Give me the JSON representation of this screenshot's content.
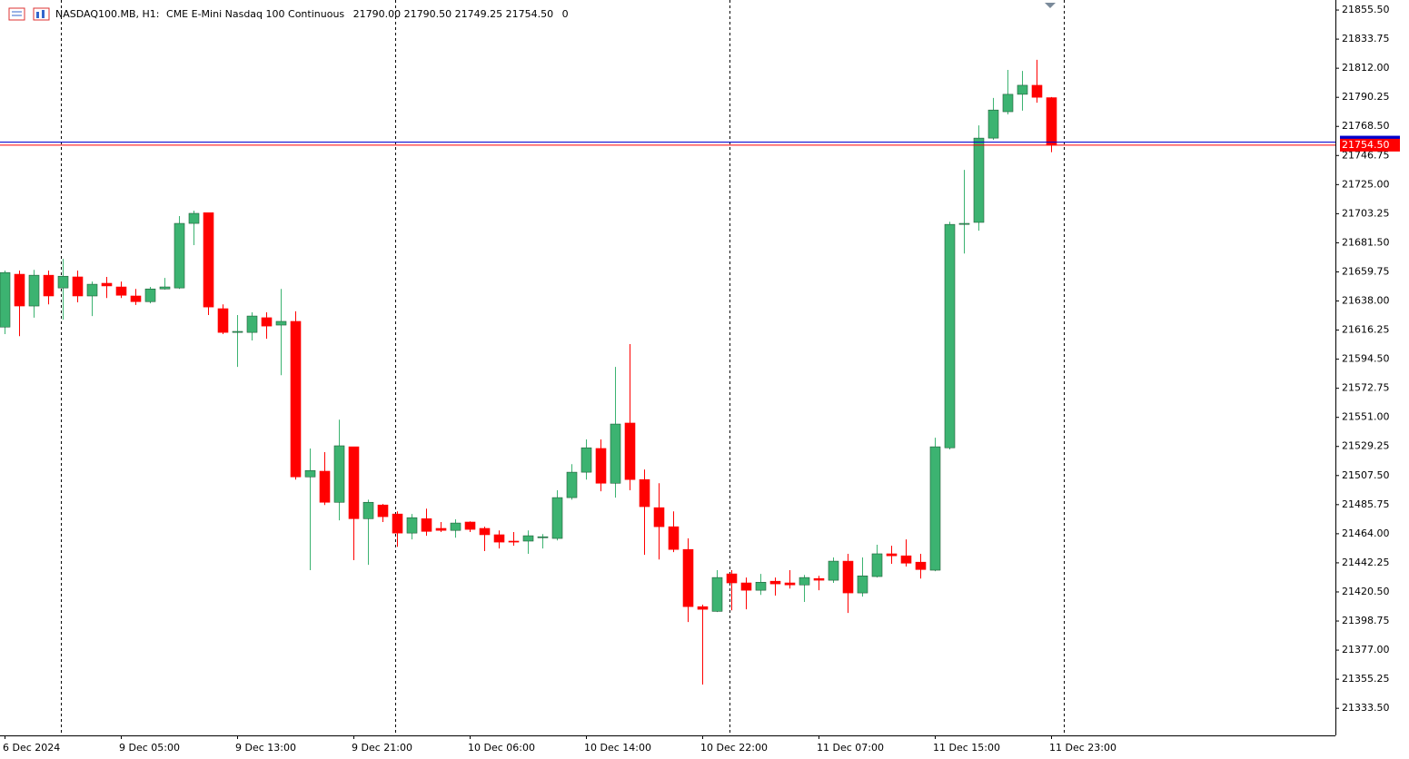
{
  "chart_data": {
    "type": "candlestick",
    "header": {
      "symbol": "NASDAQ100.MB, H1:",
      "description": "CME E-Mini Nasdaq 100 Continuous",
      "ohlc_labels": [
        "21790.00",
        "21790.50",
        "21749.25",
        "21754.50"
      ],
      "volume": "0"
    },
    "categories": [
      "6 Dec 2024",
      null,
      null,
      null,
      null,
      null,
      null,
      null,
      "9 Dec 05:00",
      null,
      null,
      null,
      null,
      null,
      null,
      null,
      "9 Dec 13:00",
      null,
      null,
      null,
      null,
      null,
      null,
      null,
      "9 Dec 21:00",
      null,
      null,
      null,
      null,
      null,
      null,
      null,
      "10 Dec 06:00",
      null,
      null,
      null,
      null,
      null,
      null,
      null,
      "10 Dec 14:00",
      null,
      null,
      null,
      null,
      null,
      null,
      null,
      "10 Dec 22:00",
      null,
      null,
      null,
      null,
      null,
      null,
      null,
      "11 Dec 07:00",
      null,
      null,
      null,
      null,
      null,
      null,
      null,
      "11 Dec 15:00",
      null,
      null,
      null,
      null,
      null,
      null,
      null,
      "11 Dec 23:00"
    ],
    "open": [
      21618.5,
      21658.0,
      21634.25,
      21657.25,
      21647.75,
      21656.0,
      21641.75,
      21651.25,
      21648.5,
      21641.75,
      21637.5,
      21647.0,
      21647.75,
      21696.0,
      21704.0,
      21632.25,
      21614.5,
      21614.5,
      21625.5,
      21620.0,
      21622.75,
      21506.5,
      21510.75,
      21487.5,
      21529.0,
      21475.25,
      21485.5,
      21478.75,
      21464.5,
      21475.25,
      21468.0,
      21466.5,
      21472.75,
      21468.0,
      21463.25,
      21458.5,
      21458.5,
      21461.0,
      21460.5,
      21491.0,
      21510.0,
      21527.75,
      21501.75,
      21546.75,
      21504.5,
      21483.5,
      21469.25,
      21452.25,
      21409.5,
      21406.0,
      21434.0,
      21427.25,
      21421.75,
      21428.5,
      21427.25,
      21425.75,
      21430.5,
      21429.25,
      21443.5,
      21419.75,
      21432.0,
      21449.0,
      21447.5,
      21442.75,
      21436.75,
      21528.25,
      21695.25,
      21696.75,
      21759.75,
      21779.5,
      21792.5,
      21799.25,
      21790.0
    ],
    "high": [
      21660.75,
      21660.75,
      21661.25,
      21660.75,
      21669.5,
      21660.75,
      21652.5,
      21656.0,
      21652.5,
      21647.0,
      21648.5,
      21655.25,
      21701.5,
      21705.5,
      21704.0,
      21635.5,
      21627.5,
      21629.5,
      21629.5,
      21647.0,
      21630.25,
      21527.75,
      21525.0,
      21549.25,
      21529.0,
      21489.5,
      21486.25,
      21480.75,
      21478.75,
      21482.75,
      21472.75,
      21474.75,
      21473.25,
      21469.25,
      21466.5,
      21465.25,
      21466.5,
      21463.75,
      21496.5,
      21516.0,
      21534.5,
      21534.5,
      21588.75,
      21605.75,
      21512.0,
      21501.75,
      21480.75,
      21460.5,
      21411.0,
      21436.75,
      21436.75,
      21431.25,
      21434.0,
      21431.25,
      21436.75,
      21433.25,
      21432.5,
      21446.25,
      21449.0,
      21446.25,
      21455.75,
      21455.0,
      21459.75,
      21449.0,
      21535.75,
      21697.25,
      21736.0,
      21769.25,
      21789.75,
      21810.75,
      21810.0,
      21818.25,
      21790.5
    ],
    "low": [
      21613.25,
      21611.75,
      21625.5,
      21635.5,
      21624.0,
      21637.0,
      21626.75,
      21640.25,
      21640.25,
      21635.0,
      21636.25,
      21646.5,
      21647.0,
      21679.75,
      21627.5,
      21613.25,
      21588.75,
      21608.5,
      21609.75,
      21582.5,
      21504.5,
      21436.75,
      21485.5,
      21474.0,
      21444.25,
      21440.75,
      21472.75,
      21454.25,
      21459.75,
      21462.5,
      21465.25,
      21461.0,
      21465.25,
      21451.0,
      21453.0,
      21455.0,
      21449.0,
      21453.0,
      21459.0,
      21489.5,
      21504.5,
      21495.75,
      21491.0,
      21496.5,
      21448.25,
      21444.75,
      21450.25,
      21398.0,
      21351.25,
      21405.5,
      21406.75,
      21407.5,
      21418.25,
      21417.75,
      21423.0,
      21413.0,
      21421.75,
      21427.25,
      21404.75,
      21417.0,
      21431.25,
      21441.5,
      21439.5,
      21430.5,
      21436.0,
      21527.0,
      21673.5,
      21690.5,
      21758.5,
      21777.5,
      21780.25,
      21786.25,
      21749.25
    ],
    "close": [
      21659.25,
      21634.25,
      21657.25,
      21641.75,
      21656.5,
      21641.75,
      21650.5,
      21649.25,
      21642.25,
      21637.5,
      21647.0,
      21648.5,
      21696.0,
      21703.5,
      21633.5,
      21614.5,
      21615.25,
      21626.75,
      21619.25,
      21622.75,
      21506.5,
      21511.25,
      21487.5,
      21529.75,
      21475.25,
      21487.5,
      21476.75,
      21464.5,
      21476.0,
      21465.75,
      21466.5,
      21472.0,
      21467.25,
      21463.25,
      21457.75,
      21457.75,
      21462.5,
      21461.75,
      21491.0,
      21510.0,
      21528.25,
      21501.75,
      21546.0,
      21504.5,
      21484.25,
      21469.25,
      21452.25,
      21409.5,
      21407.5,
      21431.25,
      21427.25,
      21421.75,
      21427.75,
      21426.5,
      21425.75,
      21431.25,
      21429.25,
      21443.5,
      21419.75,
      21432.5,
      21449.0,
      21447.5,
      21442.0,
      21437.25,
      21529.0,
      21695.25,
      21696.0,
      21759.75,
      21780.75,
      21792.5,
      21799.25,
      21790.25,
      21754.5
    ],
    "up_color": "#3cb371",
    "down_color": "#ff0000",
    "bid": {
      "value": 21754.5,
      "label": "21754.50"
    },
    "bid_color": "#ff0000",
    "ask": 21756.75,
    "ask_color": "#0000cd",
    "ylim": [
      21313.25,
      21863.0
    ],
    "yticks": [
      {
        "value": 21333.5,
        "label": "21333.50"
      },
      {
        "value": 21355.25,
        "label": "21355.25"
      },
      {
        "value": 21377,
        "label": "21377.00"
      },
      {
        "value": 21398.75,
        "label": "21398.75"
      },
      {
        "value": 21420.5,
        "label": "21420.50"
      },
      {
        "value": 21442.25,
        "label": "21442.25"
      },
      {
        "value": 21464,
        "label": "21464.00"
      },
      {
        "value": 21485.75,
        "label": "21485.75"
      },
      {
        "value": 21507.5,
        "label": "21507.50"
      },
      {
        "value": 21529.25,
        "label": "21529.25"
      },
      {
        "value": 21551,
        "label": "21551.00"
      },
      {
        "value": 21572.75,
        "label": "21572.75"
      },
      {
        "value": 21594.5,
        "label": "21594.50"
      },
      {
        "value": 21616.25,
        "label": "21616.25"
      },
      {
        "value": 21638,
        "label": "21638.00"
      },
      {
        "value": 21659.75,
        "label": "21659.75"
      },
      {
        "value": 21681.5,
        "label": "21681.50"
      },
      {
        "value": 21703.25,
        "label": "21703.25"
      },
      {
        "value": 21725,
        "label": "21725.00"
      },
      {
        "value": 21746.75,
        "label": "21746.75"
      },
      {
        "value": 21768.5,
        "label": "21768.50"
      },
      {
        "value": 21790.25,
        "label": "21790.25"
      },
      {
        "value": 21812,
        "label": "21812.00"
      },
      {
        "value": 21833.75,
        "label": "21833.75"
      },
      {
        "value": 21855.5,
        "label": "21855.50"
      }
    ]
  }
}
